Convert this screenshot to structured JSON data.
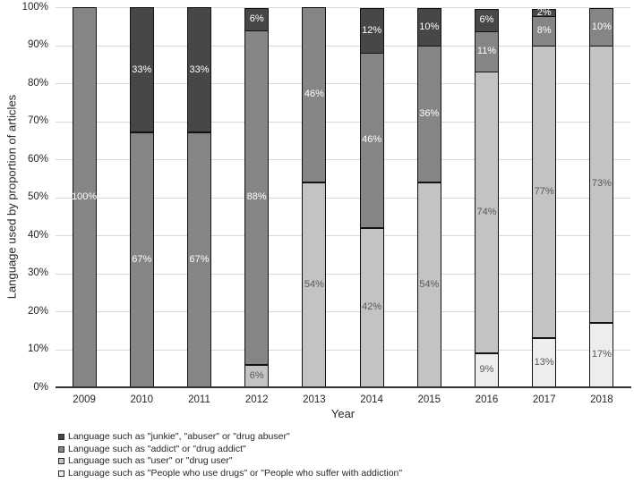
{
  "chart_data": {
    "type": "bar",
    "stacked": true,
    "title": "",
    "xlabel": "Year",
    "ylabel": "Language used by proportion of articles",
    "categories": [
      "2009",
      "2010",
      "2011",
      "2012",
      "2013",
      "2014",
      "2015",
      "2016",
      "2017",
      "2018"
    ],
    "series": [
      {
        "name": "Language such as \"junkie\", \"abuser\" or \"drug abuser\"",
        "color": "#474747",
        "label_color": "#ffffff",
        "values": [
          0,
          33,
          33,
          6,
          0,
          12,
          10,
          6,
          2,
          0
        ]
      },
      {
        "name": "Language such as \"addict\" or \"drug addict\"",
        "color": "#858585",
        "label_color": "#ffffff",
        "values": [
          100,
          67,
          67,
          88,
          46,
          46,
          36,
          11,
          8,
          10
        ]
      },
      {
        "name": "Language such as \"user\" or \"drug user\"",
        "color": "#c3c3c3",
        "label_color": "#595959",
        "values": [
          0,
          0,
          0,
          6,
          54,
          42,
          54,
          74,
          77,
          73
        ]
      },
      {
        "name": "Language such as \"People who use drugs\" or \"People who suffer with addiction\"",
        "color": "#ededed",
        "label_color": "#595959",
        "values": [
          0,
          0,
          0,
          0,
          0,
          0,
          0,
          9,
          13,
          17
        ]
      }
    ],
    "ylim": [
      0,
      100
    ],
    "ytick_step": 10,
    "ytick_suffix": "%",
    "data_label_suffix": "%",
    "grid": true,
    "gridline_color": "#d9d9d9",
    "axis_line_color": "#333333",
    "legend_position": "bottom-left"
  }
}
